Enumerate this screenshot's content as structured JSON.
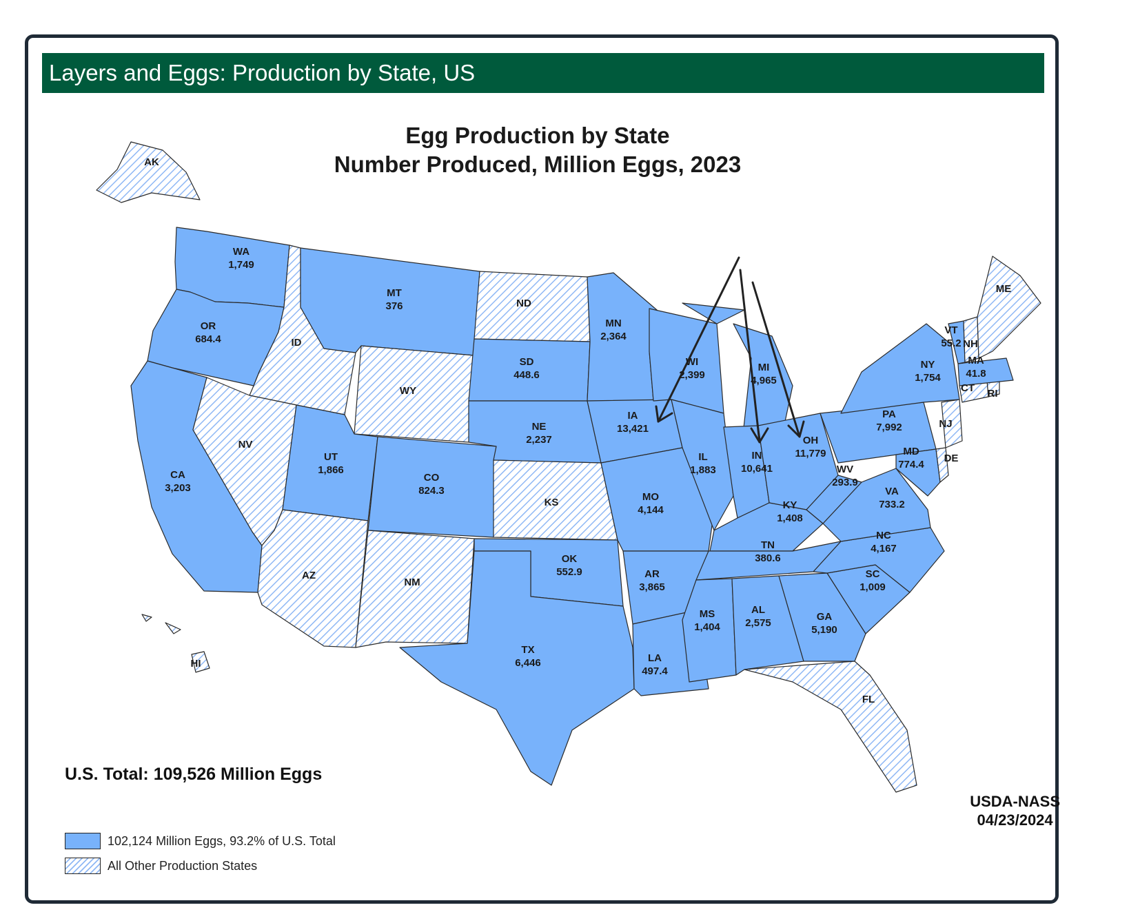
{
  "header": {
    "title": "Layers and Eggs: Production by State, US"
  },
  "map": {
    "title_line1": "Egg Production by State",
    "title_line2": "Number Produced, Million Eggs, 2023"
  },
  "total": "U.S. Total: 109,526 Million Eggs",
  "legend": [
    {
      "label": "102,124 Million Eggs, 93.2% of U.S. Total",
      "style": "solid",
      "color": "#78b2fb"
    },
    {
      "label": "All Other Production States",
      "style": "hatched",
      "color": "#8fb8f5"
    }
  ],
  "credit": {
    "line1": "USDA-NASS",
    "line2": "04/23/2024"
  },
  "colors": {
    "solid_fill": "#78b2fb",
    "hatch_line": "#8fb8f5",
    "header_bg": "#005a3c",
    "border": "#1f2a36"
  },
  "states": [
    {
      "abbr": "WA",
      "value": "1,749",
      "style": "solid"
    },
    {
      "abbr": "OR",
      "value": "684.4",
      "style": "solid"
    },
    {
      "abbr": "CA",
      "value": "3,203",
      "style": "solid"
    },
    {
      "abbr": "ID",
      "value": "",
      "style": "hatched"
    },
    {
      "abbr": "NV",
      "value": "",
      "style": "hatched"
    },
    {
      "abbr": "MT",
      "value": "376",
      "style": "solid"
    },
    {
      "abbr": "WY",
      "value": "",
      "style": "hatched"
    },
    {
      "abbr": "UT",
      "value": "1,866",
      "style": "solid"
    },
    {
      "abbr": "AZ",
      "value": "",
      "style": "hatched"
    },
    {
      "abbr": "CO",
      "value": "824.3",
      "style": "solid"
    },
    {
      "abbr": "NM",
      "value": "",
      "style": "hatched"
    },
    {
      "abbr": "ND",
      "value": "",
      "style": "hatched"
    },
    {
      "abbr": "SD",
      "value": "448.6",
      "style": "solid"
    },
    {
      "abbr": "NE",
      "value": "2,237",
      "style": "solid"
    },
    {
      "abbr": "KS",
      "value": "",
      "style": "hatched"
    },
    {
      "abbr": "OK",
      "value": "552.9",
      "style": "solid"
    },
    {
      "abbr": "TX",
      "value": "6,446",
      "style": "solid"
    },
    {
      "abbr": "MN",
      "value": "2,364",
      "style": "solid"
    },
    {
      "abbr": "IA",
      "value": "13,421",
      "style": "solid"
    },
    {
      "abbr": "MO",
      "value": "4,144",
      "style": "solid"
    },
    {
      "abbr": "AR",
      "value": "3,865",
      "style": "solid"
    },
    {
      "abbr": "LA",
      "value": "497.4",
      "style": "solid"
    },
    {
      "abbr": "WI",
      "value": "2,399",
      "style": "solid"
    },
    {
      "abbr": "IL",
      "value": "1,883",
      "style": "solid"
    },
    {
      "abbr": "MI",
      "value": "4,965",
      "style": "solid"
    },
    {
      "abbr": "IN",
      "value": "10,641",
      "style": "solid"
    },
    {
      "abbr": "OH",
      "value": "11,779",
      "style": "solid"
    },
    {
      "abbr": "KY",
      "value": "1,408",
      "style": "solid"
    },
    {
      "abbr": "TN",
      "value": "380.6",
      "style": "solid"
    },
    {
      "abbr": "MS",
      "value": "1,404",
      "style": "solid"
    },
    {
      "abbr": "AL",
      "value": "2,575",
      "style": "solid"
    },
    {
      "abbr": "GA",
      "value": "5,190",
      "style": "solid"
    },
    {
      "abbr": "FL",
      "value": "",
      "style": "hatched"
    },
    {
      "abbr": "SC",
      "value": "1,009",
      "style": "solid"
    },
    {
      "abbr": "NC",
      "value": "4,167",
      "style": "solid"
    },
    {
      "abbr": "VA",
      "value": "733.2",
      "style": "solid"
    },
    {
      "abbr": "WV",
      "value": "293.9",
      "style": "solid"
    },
    {
      "abbr": "PA",
      "value": "7,992",
      "style": "solid"
    },
    {
      "abbr": "NY",
      "value": "1,754",
      "style": "solid"
    },
    {
      "abbr": "MD",
      "value": "774.4",
      "style": "solid"
    },
    {
      "abbr": "DE",
      "value": "",
      "style": "hatched"
    },
    {
      "abbr": "NJ",
      "value": "",
      "style": "hatched"
    },
    {
      "abbr": "CT",
      "value": "",
      "style": "hatched"
    },
    {
      "abbr": "RI",
      "value": "",
      "style": "hatched"
    },
    {
      "abbr": "MA",
      "value": "41.8",
      "style": "solid"
    },
    {
      "abbr": "VT",
      "value": "55.2",
      "style": "solid"
    },
    {
      "abbr": "NH",
      "value": "",
      "style": "hatched"
    },
    {
      "abbr": "ME",
      "value": "",
      "style": "hatched"
    },
    {
      "abbr": "AK",
      "value": "",
      "style": "hatched"
    },
    {
      "abbr": "HI",
      "value": "",
      "style": "hatched"
    }
  ]
}
